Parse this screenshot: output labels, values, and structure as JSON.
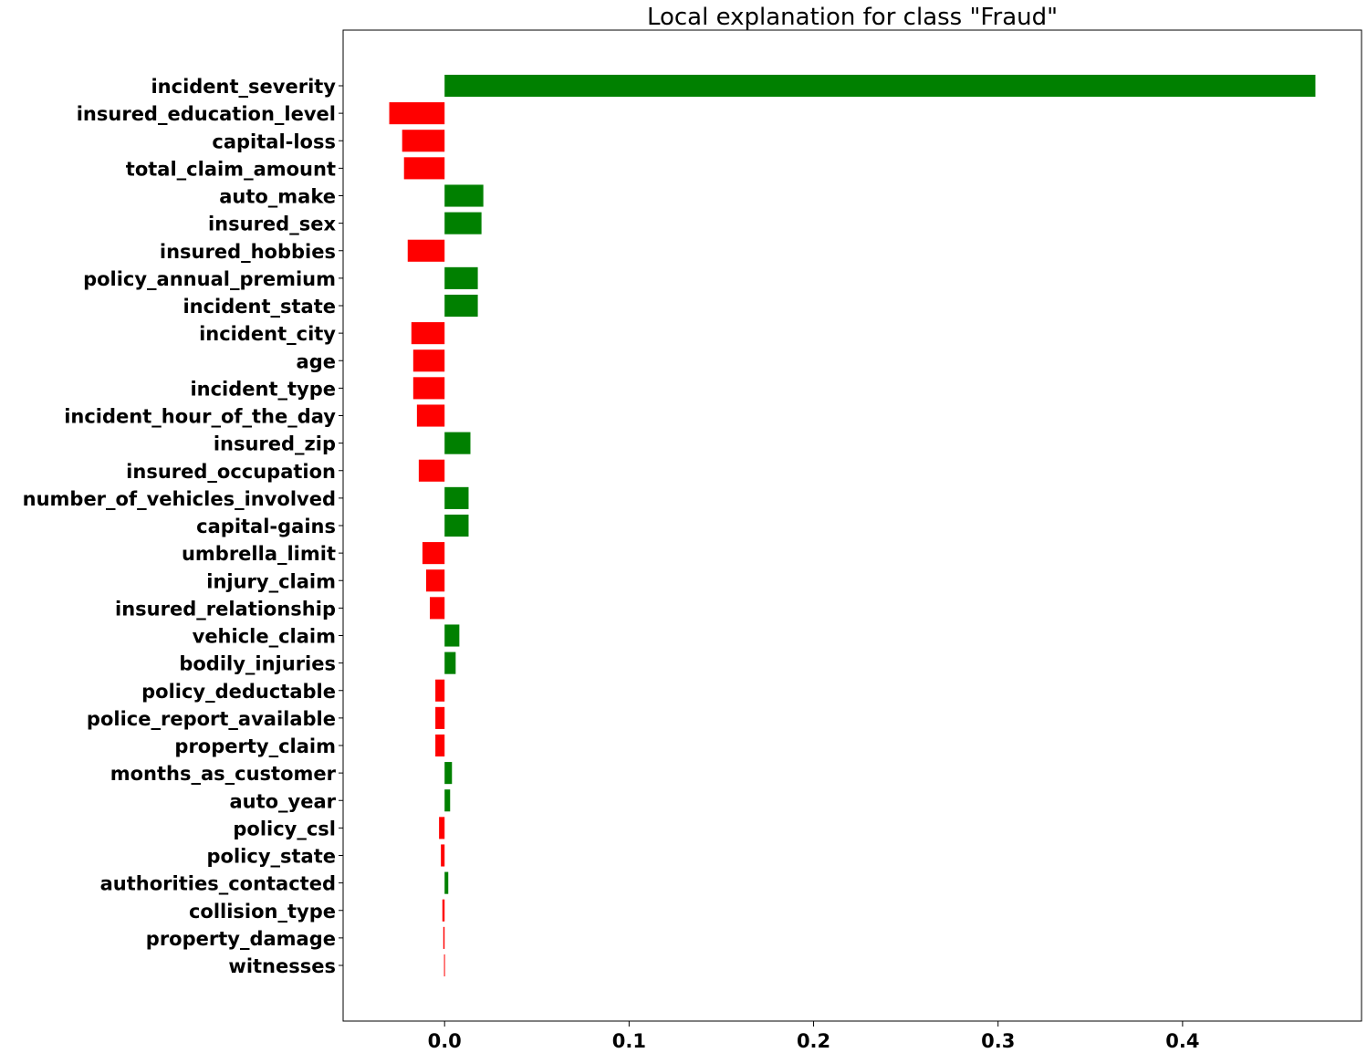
{
  "chart_data": {
    "type": "bar",
    "orientation": "horizontal",
    "title": "Local explanation for class \"Fraud\"",
    "xlabel": "",
    "ylabel": "",
    "xlim": [
      -0.055,
      0.497
    ],
    "xticks": [
      0.0,
      0.1,
      0.2,
      0.3,
      0.4
    ],
    "xtick_labels": [
      "0.0",
      "0.1",
      "0.2",
      "0.3",
      "0.4"
    ],
    "grid": false,
    "colors": {
      "positive": "#008000",
      "negative": "#ff0000"
    },
    "categories": [
      "incident_severity",
      "insured_education_level",
      "capital-loss",
      "total_claim_amount",
      "auto_make",
      "insured_sex",
      "insured_hobbies",
      "policy_annual_premium",
      "incident_state",
      "incident_city",
      "age",
      "incident_type",
      "incident_hour_of_the_day",
      "insured_zip",
      "insured_occupation",
      "number_of_vehicles_involved",
      "capital-gains",
      "umbrella_limit",
      "injury_claim",
      "insured_relationship",
      "vehicle_claim",
      "bodily_injuries",
      "policy_deductable",
      "police_report_available",
      "property_claim",
      "months_as_customer",
      "auto_year",
      "policy_csl",
      "policy_state",
      "authorities_contacted",
      "collision_type",
      "property_damage",
      "witnesses"
    ],
    "values": [
      0.472,
      -0.03,
      -0.023,
      -0.022,
      0.021,
      0.02,
      -0.02,
      0.018,
      0.018,
      -0.018,
      -0.017,
      -0.017,
      -0.015,
      0.014,
      -0.014,
      0.013,
      0.013,
      -0.012,
      -0.01,
      -0.008,
      0.008,
      0.006,
      -0.005,
      -0.005,
      -0.005,
      0.004,
      0.003,
      -0.003,
      -0.002,
      0.002,
      -0.0012,
      -0.0007,
      -0.0003
    ]
  }
}
